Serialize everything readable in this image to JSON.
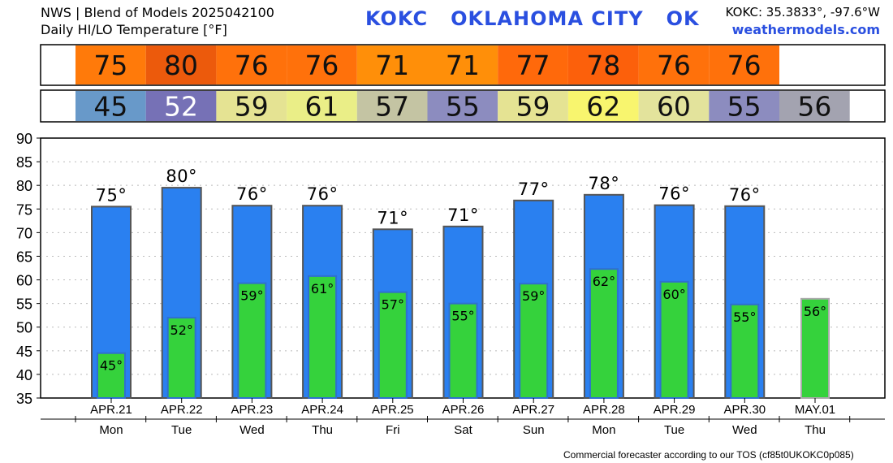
{
  "header": {
    "line1": "NWS | Blend of Models 2025042100",
    "line2": "Daily HI/LO Temperature [°F]",
    "station_title": "KOKC   OKLAHOMA CITY   OK",
    "coords": "KOKC: 35.3833°, -97.6°W",
    "site": "weathermodels.com"
  },
  "footer": "Commercial forecaster according to our TOS (cf85t0UKOKC0p085)",
  "high_row": {
    "values": [
      "75",
      "80",
      "76",
      "76",
      "71",
      "71",
      "77",
      "78",
      "76",
      "76"
    ],
    "colors": [
      "#ff7a0a",
      "#ec5a0c",
      "#ff710b",
      "#ff710b",
      "#ff8f09",
      "#ff8f09",
      "#ff690b",
      "#fc600b",
      "#ff710b",
      "#ff710b"
    ]
  },
  "low_row": {
    "values": [
      "45",
      "52",
      "59",
      "61",
      "57",
      "55",
      "59",
      "62",
      "60",
      "55",
      "56"
    ],
    "colors": [
      "#6899c9",
      "#7671b6",
      "#e5e393",
      "#eaee87",
      "#c4c4a3",
      "#8c8cbf",
      "#e5e393",
      "#f8f56e",
      "#e3e39c",
      "#8c8cbf",
      "#a3a3b0"
    ]
  },
  "chart_data": {
    "type": "bar",
    "categories": [
      "APR.21",
      "APR.22",
      "APR.23",
      "APR.24",
      "APR.25",
      "APR.26",
      "APR.27",
      "APR.28",
      "APR.29",
      "APR.30",
      "MAY.01"
    ],
    "weekdays": [
      "Mon",
      "Tue",
      "Wed",
      "Thu",
      "Fri",
      "Sat",
      "Sun",
      "Mon",
      "Tue",
      "Wed",
      "Thu"
    ],
    "series": [
      {
        "values": [
          75.5,
          79.5,
          75.7,
          75.7,
          70.7,
          71.3,
          76.8,
          78.0,
          75.8,
          75.6,
          null
        ],
        "labels": [
          "75°",
          "80°",
          "76°",
          "76°",
          "71°",
          "71°",
          "77°",
          "78°",
          "76°",
          "76°",
          ""
        ],
        "color": "#2a80f0"
      },
      {
        "values": [
          44.5,
          52.0,
          59.3,
          60.8,
          57.4,
          55.0,
          59.2,
          62.3,
          59.6,
          54.8,
          56.0
        ],
        "labels": [
          "45°",
          "52°",
          "59°",
          "61°",
          "57°",
          "55°",
          "59°",
          "62°",
          "60°",
          "55°",
          "56°"
        ],
        "color": "#35d23c"
      }
    ],
    "ylim": [
      35,
      90
    ],
    "yticks": [
      "35",
      "40",
      "45",
      "50",
      "55",
      "60",
      "65",
      "70",
      "75",
      "80",
      "85",
      "90"
    ],
    "grid": true
  }
}
